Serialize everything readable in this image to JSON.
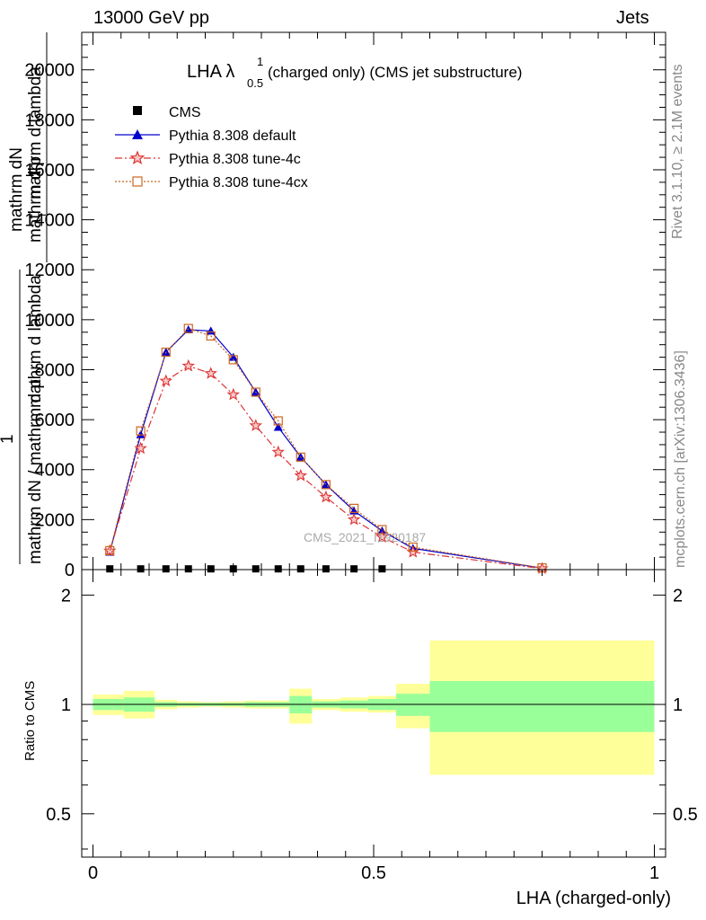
{
  "header": {
    "left": "13000 GeV pp",
    "right": "Jets"
  },
  "side_labels": {
    "rivet": "Rivet 3.1.10, ≥ 2.1M events",
    "mcplots": "mcplots.cern.ch [arXiv:1306.3436]"
  },
  "chart_data": [
    {
      "type": "line",
      "panel": "main",
      "title_main": "LHA λ",
      "title_sup": "1",
      "title_sub": "0.5",
      "title_rest": " (charged only) (CMS jet substructure)",
      "ylabel_parts": [
        "mathrm dN",
        "mathrm d p",
        "T",
        " mathrm d lambda",
        "1",
        "mathrm dN / mathrm d p",
        " mathrm d lambda"
      ],
      "xlim": [
        -0.02,
        1.02
      ],
      "ylim": [
        0,
        21500
      ],
      "y_ticks": [
        0,
        2000,
        4000,
        6000,
        8000,
        10000,
        12000,
        14000,
        16000,
        18000,
        20000
      ],
      "y_tick_labels": [
        "0",
        "2000",
        "4000",
        "6000",
        "8000",
        "10000",
        "12000",
        "14000",
        "16000",
        "18000",
        "20000"
      ],
      "watermark": "CMS_2021_I1920187",
      "legend_position": "top-left",
      "series": [
        {
          "name": "CMS",
          "color": "#000000",
          "marker": "square",
          "x": [
            0.03,
            0.085,
            0.13,
            0.17,
            0.21,
            0.25,
            0.29,
            0.33,
            0.37,
            0.415,
            0.465,
            0.515
          ],
          "y": [
            30,
            30,
            30,
            30,
            30,
            30,
            30,
            30,
            30,
            30,
            30,
            30
          ]
        },
        {
          "name": "Pythia 8.308 default",
          "color": "#0000cc",
          "marker": "triangle",
          "line": "solid",
          "x": [
            0.03,
            0.085,
            0.13,
            0.17,
            0.21,
            0.25,
            0.29,
            0.33,
            0.37,
            0.415,
            0.465,
            0.515,
            0.57,
            0.8
          ],
          "y": [
            700,
            5400,
            8700,
            9600,
            9550,
            8500,
            7100,
            5700,
            4500,
            3400,
            2350,
            1550,
            850,
            60
          ]
        },
        {
          "name": "Pythia 8.308 tune-4c",
          "color": "#dd3333",
          "marker": "star",
          "line": "dashdot",
          "x": [
            0.03,
            0.085,
            0.13,
            0.17,
            0.21,
            0.25,
            0.29,
            0.33,
            0.37,
            0.415,
            0.465,
            0.515,
            0.57,
            0.8
          ],
          "y": [
            750,
            4850,
            7550,
            8150,
            7850,
            7000,
            5760,
            4700,
            3760,
            2900,
            2000,
            1300,
            700,
            40
          ]
        },
        {
          "name": "Pythia 8.308 tune-4cx",
          "color": "#cc6622",
          "marker": "open-square",
          "line": "dotted",
          "x": [
            0.03,
            0.085,
            0.13,
            0.17,
            0.21,
            0.25,
            0.29,
            0.33,
            0.37,
            0.415,
            0.465,
            0.515,
            0.57,
            0.8
          ],
          "y": [
            760,
            5550,
            8700,
            9650,
            9350,
            8400,
            7100,
            5950,
            4500,
            3400,
            2450,
            1600,
            900,
            70
          ]
        }
      ]
    },
    {
      "type": "area",
      "panel": "ratio",
      "ylabel": "Ratio to CMS",
      "xlabel": "LHA (charged-only)",
      "xlim": [
        -0.02,
        1.02
      ],
      "ylim": [
        0.38,
        2.35
      ],
      "y_ticks": [
        0.5,
        1,
        2
      ],
      "y_tick_labels": [
        "0.5",
        "1",
        "2"
      ],
      "x_ticks": [
        0,
        0.5,
        1
      ],
      "x_tick_labels": [
        "0",
        "0.5",
        "1"
      ],
      "band_colors": {
        "stat": "#99ff99",
        "total": "#ffff99",
        "reference": "#000000"
      },
      "bins": [
        {
          "lo": 0.0,
          "hi": 0.055,
          "inner": [
            0.965,
            1.035
          ],
          "outer": [
            0.935,
            1.065
          ]
        },
        {
          "lo": 0.055,
          "hi": 0.11,
          "inner": [
            0.955,
            1.045
          ],
          "outer": [
            0.915,
            1.09
          ]
        },
        {
          "lo": 0.11,
          "hi": 0.15,
          "inner": [
            0.985,
            1.015
          ],
          "outer": [
            0.97,
            1.03
          ]
        },
        {
          "lo": 0.15,
          "hi": 0.19,
          "inner": [
            0.99,
            1.01
          ],
          "outer": [
            0.98,
            1.02
          ]
        },
        {
          "lo": 0.19,
          "hi": 0.23,
          "inner": [
            0.99,
            1.01
          ],
          "outer": [
            0.985,
            1.015
          ]
        },
        {
          "lo": 0.23,
          "hi": 0.27,
          "inner": [
            0.99,
            1.01
          ],
          "outer": [
            0.98,
            1.02
          ]
        },
        {
          "lo": 0.27,
          "hi": 0.31,
          "inner": [
            0.985,
            1.015
          ],
          "outer": [
            0.975,
            1.025
          ]
        },
        {
          "lo": 0.31,
          "hi": 0.35,
          "inner": [
            0.985,
            1.015
          ],
          "outer": [
            0.975,
            1.025
          ]
        },
        {
          "lo": 0.35,
          "hi": 0.39,
          "inner": [
            0.945,
            1.055
          ],
          "outer": [
            0.885,
            1.105
          ]
        },
        {
          "lo": 0.39,
          "hi": 0.44,
          "inner": [
            0.98,
            1.02
          ],
          "outer": [
            0.965,
            1.035
          ]
        },
        {
          "lo": 0.44,
          "hi": 0.49,
          "inner": [
            0.975,
            1.025
          ],
          "outer": [
            0.955,
            1.045
          ]
        },
        {
          "lo": 0.49,
          "hi": 0.54,
          "inner": [
            0.965,
            1.035
          ],
          "outer": [
            0.95,
            1.055
          ]
        },
        {
          "lo": 0.54,
          "hi": 0.6,
          "inner": [
            0.93,
            1.07
          ],
          "outer": [
            0.86,
            1.14
          ]
        },
        {
          "lo": 0.6,
          "hi": 1.0,
          "inner": [
            0.84,
            1.16
          ],
          "outer": [
            0.64,
            1.5
          ]
        }
      ]
    }
  ]
}
